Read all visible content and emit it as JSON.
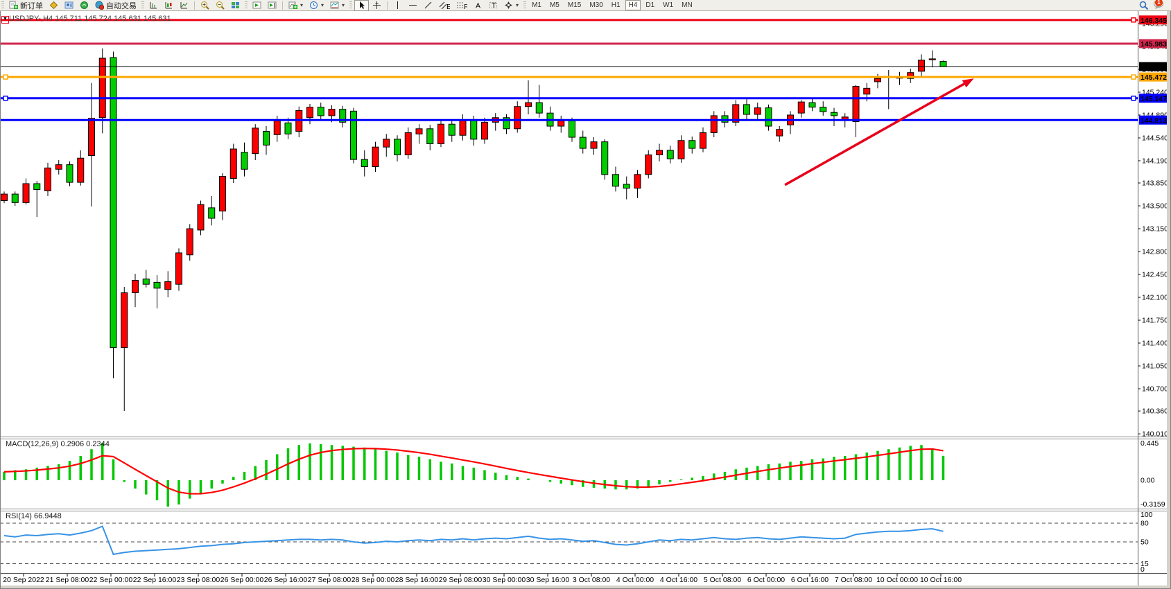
{
  "toolbar": {
    "new_order_label": "新订单",
    "autotrading_label": "自动交易",
    "timeframes": [
      "M1",
      "M5",
      "M15",
      "M30",
      "H1",
      "H4",
      "D1",
      "W1",
      "MN"
    ],
    "active_timeframe": "H4",
    "notification_count": "1"
  },
  "chart": {
    "title": "USDJPY-,H4  145.711 145.724 145.631 145.631",
    "symbol": "USDJPY-",
    "timeframe": "H4",
    "open": "145.711",
    "high": "145.724",
    "low": "145.631",
    "close": "145.631"
  },
  "indicators": {
    "macd": {
      "label": "MACD(12,26,9) 0.2906 0.2344",
      "value": "0.2906",
      "signal": "0.2344"
    },
    "rsi": {
      "label": "RSI(14) 66.9448",
      "value": "66.9448"
    }
  },
  "chart_data": {
    "type": "candlestick",
    "symbol": "USDJPY",
    "period": "H4",
    "up_color": "#fd0000",
    "down_color": "#00ce00",
    "x_labels": [
      "20 Sep 2022",
      "21 Sep 08:00",
      "22 Sep 00:00",
      "22 Sep 16:00",
      "23 Sep 08:00",
      "26 Sep 00:00",
      "26 Sep 16:00",
      "27 Sep 08:00",
      "28 Sep 00:00",
      "28 Sep 16:00",
      "29 Sep 08:00",
      "30 Sep 00:00",
      "30 Sep 16:00",
      "3 Oct 08:00",
      "4 Oct 00:00",
      "4 Oct 16:00",
      "5 Oct 08:00",
      "6 Oct 00:00",
      "6 Oct 16:00",
      "7 Oct 08:00",
      "10 Oct 00:00",
      "10 Oct 16:00"
    ],
    "y_ticks": [
      146.29,
      145.94,
      145.59,
      145.24,
      144.89,
      144.54,
      144.19,
      143.85,
      143.5,
      143.15,
      142.8,
      142.45,
      142.1,
      141.75,
      141.4,
      141.05,
      140.7,
      140.36,
      140.01
    ],
    "candles": [
      [
        143.58,
        143.72,
        143.54,
        143.68
      ],
      [
        143.68,
        143.72,
        143.5,
        143.55
      ],
      [
        143.55,
        143.92,
        143.52,
        143.84
      ],
      [
        143.84,
        143.88,
        143.33,
        143.75
      ],
      [
        143.73,
        144.16,
        143.65,
        144.08
      ],
      [
        144.06,
        144.2,
        143.98,
        144.13
      ],
      [
        144.13,
        144.18,
        143.8,
        143.86
      ],
      [
        143.86,
        144.35,
        143.81,
        144.23
      ],
      [
        144.27,
        145.38,
        143.49,
        144.84
      ],
      [
        144.85,
        145.91,
        144.61,
        145.76
      ],
      [
        145.77,
        145.86,
        140.86,
        141.33
      ],
      [
        141.33,
        142.26,
        140.36,
        142.17
      ],
      [
        142.17,
        142.46,
        141.95,
        142.36
      ],
      [
        142.38,
        142.52,
        142.25,
        142.3
      ],
      [
        142.33,
        142.44,
        141.93,
        142.24
      ],
      [
        142.22,
        142.5,
        142.1,
        142.34
      ],
      [
        142.3,
        142.85,
        142.2,
        142.78
      ],
      [
        142.75,
        143.22,
        142.66,
        143.15
      ],
      [
        143.13,
        143.58,
        143.05,
        143.52
      ],
      [
        143.47,
        143.65,
        143.2,
        143.31
      ],
      [
        143.42,
        144.0,
        143.28,
        143.95
      ],
      [
        143.92,
        144.45,
        143.85,
        144.37
      ],
      [
        144.32,
        144.47,
        143.95,
        144.06
      ],
      [
        144.3,
        144.75,
        144.2,
        144.69
      ],
      [
        144.64,
        144.72,
        144.28,
        144.43
      ],
      [
        144.59,
        144.88,
        144.48,
        144.8
      ],
      [
        144.77,
        144.85,
        144.52,
        144.6
      ],
      [
        144.64,
        145.02,
        144.55,
        144.96
      ],
      [
        144.85,
        145.06,
        144.75,
        145.01
      ],
      [
        145.01,
        145.08,
        144.8,
        144.88
      ],
      [
        144.88,
        145.04,
        144.78,
        144.98
      ],
      [
        144.98,
        145.03,
        144.7,
        144.78
      ],
      [
        144.95,
        145.0,
        144.15,
        144.21
      ],
      [
        144.21,
        144.35,
        143.95,
        144.1
      ],
      [
        144.1,
        144.48,
        144.02,
        144.4
      ],
      [
        144.4,
        144.6,
        144.25,
        144.52
      ],
      [
        144.52,
        144.58,
        144.18,
        144.28
      ],
      [
        144.28,
        144.7,
        144.22,
        144.62
      ],
      [
        144.6,
        144.75,
        144.45,
        144.68
      ],
      [
        144.68,
        144.74,
        144.35,
        144.45
      ],
      [
        144.45,
        144.82,
        144.4,
        144.75
      ],
      [
        144.75,
        144.8,
        144.48,
        144.58
      ],
      [
        144.58,
        144.9,
        144.5,
        144.82
      ],
      [
        144.82,
        144.88,
        144.42,
        144.52
      ],
      [
        144.52,
        144.85,
        144.45,
        144.78
      ],
      [
        144.78,
        144.92,
        144.65,
        144.85
      ],
      [
        144.85,
        144.9,
        144.6,
        144.68
      ],
      [
        144.68,
        145.1,
        144.62,
        145.02
      ],
      [
        145.02,
        145.42,
        144.9,
        145.08
      ],
      [
        145.08,
        145.35,
        144.85,
        144.92
      ],
      [
        144.92,
        145.02,
        144.65,
        144.72
      ],
      [
        144.72,
        144.88,
        144.62,
        144.8
      ],
      [
        144.8,
        144.85,
        144.48,
        144.55
      ],
      [
        144.55,
        144.65,
        144.3,
        144.38
      ],
      [
        144.38,
        144.55,
        144.28,
        144.48
      ],
      [
        144.48,
        144.52,
        143.9,
        143.98
      ],
      [
        143.98,
        144.1,
        143.72,
        143.8
      ],
      [
        143.83,
        143.95,
        143.6,
        143.77
      ],
      [
        143.77,
        144.05,
        143.62,
        143.98
      ],
      [
        143.98,
        144.35,
        143.92,
        144.28
      ],
      [
        144.28,
        144.45,
        144.18,
        144.35
      ],
      [
        144.35,
        144.42,
        144.15,
        144.22
      ],
      [
        144.22,
        144.58,
        144.16,
        144.5
      ],
      [
        144.5,
        144.56,
        144.3,
        144.38
      ],
      [
        144.38,
        144.7,
        144.32,
        144.62
      ],
      [
        144.62,
        144.95,
        144.55,
        144.88
      ],
      [
        144.88,
        144.95,
        144.7,
        144.78
      ],
      [
        144.78,
        145.12,
        144.72,
        145.05
      ],
      [
        145.05,
        145.15,
        144.82,
        144.9
      ],
      [
        144.9,
        145.08,
        144.82,
        145.0
      ],
      [
        145.0,
        145.05,
        144.65,
        144.72
      ],
      [
        144.57,
        144.72,
        144.48,
        144.67
      ],
      [
        144.74,
        144.95,
        144.6,
        144.89
      ],
      [
        144.92,
        145.12,
        144.85,
        145.09
      ],
      [
        145.08,
        145.15,
        144.95,
        145.01
      ],
      [
        145.01,
        145.1,
        144.88,
        144.94
      ],
      [
        144.93,
        145.0,
        144.72,
        144.88
      ],
      [
        144.82,
        144.92,
        144.7,
        144.86
      ],
      [
        144.79,
        145.35,
        144.55,
        145.33
      ],
      [
        145.21,
        145.38,
        145.1,
        145.3
      ],
      [
        145.4,
        145.52,
        145.3,
        145.45
      ],
      [
        145.47,
        145.58,
        144.98,
        145.48
      ],
      [
        145.46,
        145.55,
        145.35,
        145.47
      ],
      [
        145.45,
        145.6,
        145.38,
        145.54
      ],
      [
        145.56,
        145.82,
        145.48,
        145.73
      ],
      [
        145.74,
        145.88,
        145.62,
        145.75
      ],
      [
        145.711,
        145.724,
        145.631,
        145.631
      ]
    ],
    "levels": [
      {
        "price": 146.345,
        "label": "146.345",
        "color": "#ef0013",
        "width": 3,
        "handles": [
          "right"
        ]
      },
      {
        "price": 145.983,
        "label": "145.983",
        "color": "#d2254c",
        "width": 3,
        "handles": []
      },
      {
        "price": 145.631,
        "label": "145.631",
        "color": "#000000",
        "width": 1,
        "handles": []
      },
      {
        "price": 145.472,
        "label": "145.472",
        "color": "#ffa800",
        "width": 3,
        "handles": [
          "left",
          "right"
        ]
      },
      {
        "price": 145.147,
        "label": "145.147",
        "color": "#0000ff",
        "width": 3,
        "handles": [
          "left",
          "right"
        ]
      },
      {
        "price": 144.813,
        "label": "144.813",
        "color": "#0000ff",
        "width": 3,
        "handles": []
      }
    ],
    "macd": {
      "bar_color": "#00c800",
      "signal_color": "#ff0000",
      "scale": [
        0.445,
        0.0,
        -0.3159
      ],
      "scale_labels": [
        "0.445",
        "0.00",
        "-0.3159"
      ],
      "values": [
        0.1,
        0.12,
        0.13,
        0.15,
        0.17,
        0.19,
        0.23,
        0.29,
        0.37,
        0.445,
        0.25,
        -0.02,
        -0.1,
        -0.17,
        -0.24,
        -0.3159,
        -0.29,
        -0.22,
        -0.16,
        -0.1,
        -0.04,
        0.04,
        0.1,
        0.17,
        0.24,
        0.31,
        0.38,
        0.42,
        0.44,
        0.43,
        0.42,
        0.41,
        0.4,
        0.39,
        0.37,
        0.35,
        0.33,
        0.3,
        0.28,
        0.25,
        0.22,
        0.2,
        0.17,
        0.15,
        0.12,
        0.09,
        0.06,
        0.04,
        0.02,
        0.0,
        -0.02,
        -0.04,
        -0.06,
        -0.08,
        -0.09,
        -0.1,
        -0.11,
        -0.11,
        -0.1,
        -0.08,
        -0.05,
        -0.02,
        0.01,
        0.03,
        0.05,
        0.08,
        0.1,
        0.13,
        0.15,
        0.17,
        0.19,
        0.2,
        0.22,
        0.23,
        0.25,
        0.26,
        0.28,
        0.29,
        0.31,
        0.33,
        0.35,
        0.37,
        0.39,
        0.41,
        0.42,
        0.38,
        0.2906
      ]
    },
    "rsi": {
      "line_color": "#3793e6",
      "scale": [
        100,
        80,
        50,
        15,
        0
      ],
      "scale_labels": [
        "100",
        "80",
        "50",
        "15",
        "0"
      ],
      "dashed_levels": [
        80,
        50,
        15
      ],
      "values": [
        60,
        58,
        61,
        60,
        62,
        63,
        61,
        64,
        68,
        75,
        30,
        33,
        35,
        36,
        37,
        38,
        39,
        41,
        43,
        44,
        46,
        47,
        49,
        50,
        51,
        52,
        53,
        54,
        54,
        53,
        54,
        53,
        50,
        48,
        49,
        51,
        50,
        52,
        53,
        52,
        54,
        53,
        55,
        53,
        55,
        56,
        55,
        57,
        59,
        56,
        54,
        55,
        53,
        51,
        52,
        49,
        46,
        45,
        47,
        50,
        53,
        52,
        54,
        53,
        55,
        57,
        55,
        54,
        56,
        57,
        55,
        54,
        56,
        58,
        57,
        56,
        55,
        56,
        62,
        64,
        66,
        67,
        67,
        68,
        70,
        71,
        66.9
      ]
    },
    "trend_arrow": {
      "i1": 71.5,
      "p1": 143.82,
      "i2": 88.8,
      "p2": 145.45,
      "color": "#e8001c"
    }
  }
}
